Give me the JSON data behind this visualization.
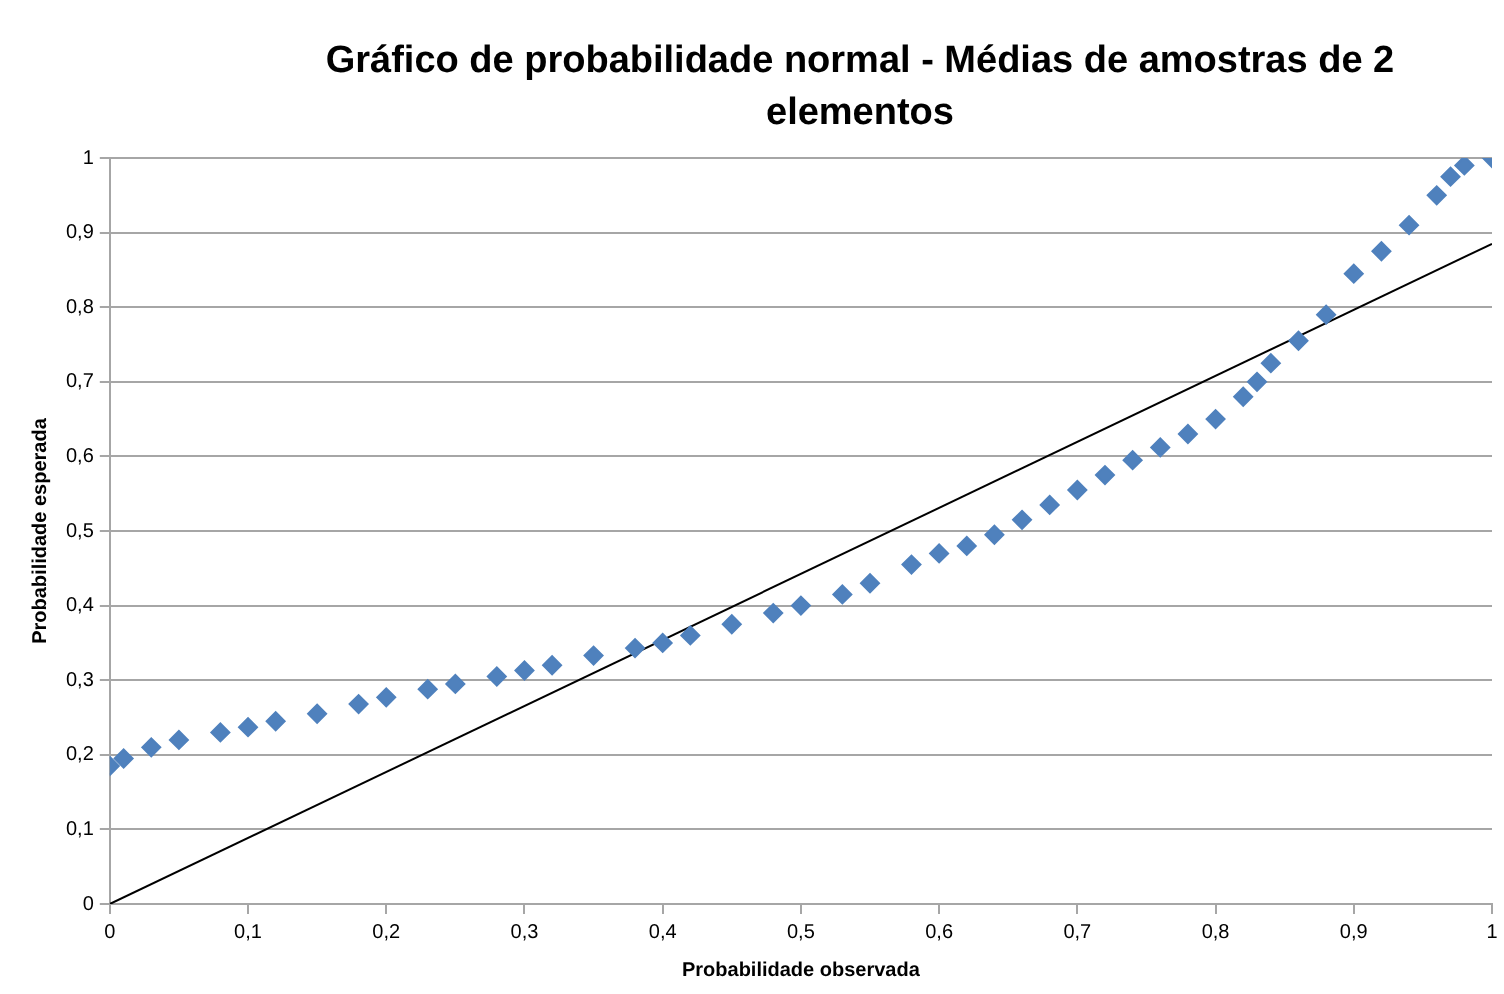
{
  "chart_data": {
    "type": "scatter",
    "title": "Gráfico de probabilidade normal - Médias de amostras de 2 elementos",
    "xlabel": "Probabilidade observada",
    "ylabel": "Probabilidade esperada",
    "marker": "diamond",
    "grid": "y",
    "legend": false,
    "xlim": [
      0,
      1
    ],
    "ylim": [
      0,
      1
    ],
    "xticks": [
      0,
      {
        "value": 0.1,
        "label": "0,1"
      },
      {
        "value": 0.2,
        "label": "0,2"
      },
      {
        "value": 0.3,
        "label": "0,3"
      },
      {
        "value": 0.4,
        "label": "0,4"
      },
      {
        "value": 0.5,
        "label": "0,5"
      },
      {
        "value": 0.6,
        "label": "0,6"
      },
      {
        "value": 0.7,
        "label": "0,7"
      },
      {
        "value": 0.8,
        "label": "0,8"
      },
      {
        "value": 0.9,
        "label": "0,9"
      },
      1
    ],
    "yticks": [
      0,
      {
        "value": 0.1,
        "label": "0,1"
      },
      {
        "value": 0.2,
        "label": "0,2"
      },
      {
        "value": 0.3,
        "label": "0,3"
      },
      {
        "value": 0.4,
        "label": "0,4"
      },
      {
        "value": 0.5,
        "label": "0,5"
      },
      {
        "value": 0.6,
        "label": "0,6"
      },
      {
        "value": 0.7,
        "label": "0,7"
      },
      {
        "value": 0.8,
        "label": "0,8"
      },
      {
        "value": 0.9,
        "label": "0,9"
      },
      1
    ],
    "series": [
      {
        "type": "scatter",
        "color": "#4f81bd",
        "x": [
          0,
          0.01,
          0.03,
          0.05,
          0.08,
          0.1,
          0.12,
          0.15,
          0.18,
          0.2,
          0.23,
          0.25,
          0.28,
          0.3,
          0.32,
          0.35,
          0.38,
          0.4,
          0.42,
          0.45,
          0.48,
          0.5,
          0.53,
          0.55,
          0.58,
          0.6,
          0.62,
          0.64,
          0.66,
          0.68,
          0.7,
          0.72,
          0.74,
          0.76,
          0.78,
          0.8,
          0.82,
          0.83,
          0.84,
          0.86,
          0.88,
          0.9,
          0.92,
          0.94,
          0.96,
          0.97,
          0.98,
          1
        ],
        "values": [
          0.185,
          0.195,
          0.21,
          0.22,
          0.23,
          0.237,
          0.245,
          0.255,
          0.268,
          0.277,
          0.288,
          0.295,
          0.305,
          0.313,
          0.32,
          0.333,
          0.343,
          0.35,
          0.36,
          0.375,
          0.39,
          0.4,
          0.415,
          0.43,
          0.455,
          0.47,
          0.48,
          0.495,
          0.515,
          0.535,
          0.555,
          0.575,
          0.595,
          0.612,
          0.63,
          0.65,
          0.68,
          0.7,
          0.725,
          0.755,
          0.79,
          0.845,
          0.875,
          0.91,
          0.95,
          0.975,
          0.99,
          1
        ]
      },
      {
        "type": "line",
        "color": "#000000",
        "marker": "none",
        "x": [
          0,
          1
        ],
        "values": [
          0,
          0.885
        ]
      }
    ]
  }
}
